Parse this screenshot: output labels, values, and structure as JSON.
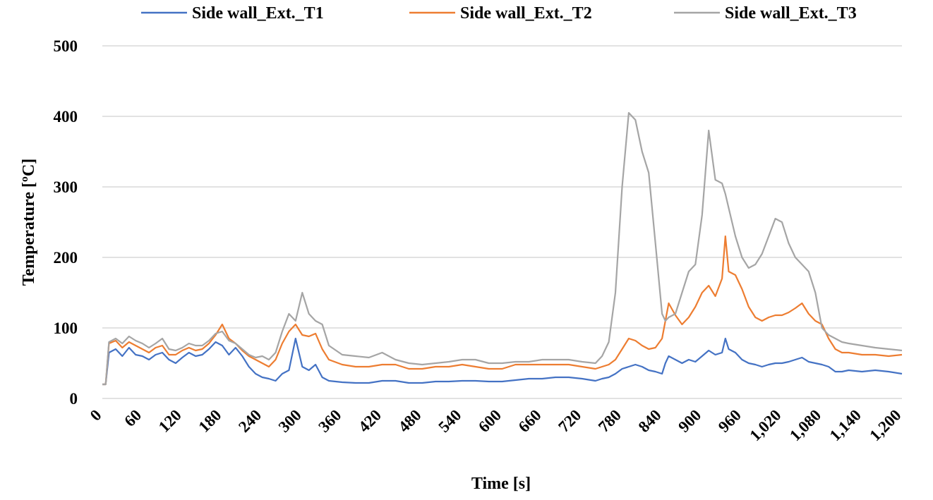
{
  "chart_data": {
    "type": "line",
    "title": "",
    "xlabel": "Time [s]",
    "ylabel": "Temperature [ºC]",
    "xlim": [
      0,
      1200
    ],
    "ylim": [
      0,
      500
    ],
    "grid": true,
    "legend_position": "top",
    "x_ticks": [
      0,
      60,
      120,
      180,
      240,
      300,
      360,
      420,
      480,
      540,
      600,
      660,
      720,
      780,
      840,
      900,
      960,
      1020,
      1080,
      1140,
      1200
    ],
    "x_tick_labels": [
      "0",
      "60",
      "120",
      "180",
      "240",
      "300",
      "360",
      "420",
      "480",
      "540",
      "600",
      "660",
      "720",
      "780",
      "840",
      "900",
      "960",
      "1,020",
      "1,080",
      "1,140",
      "1,200"
    ],
    "y_ticks": [
      0,
      100,
      200,
      300,
      400,
      500
    ],
    "y_tick_labels": [
      "0",
      "100",
      "200",
      "300",
      "400",
      "500"
    ],
    "x": [
      0,
      5,
      10,
      20,
      30,
      40,
      50,
      60,
      70,
      80,
      90,
      100,
      110,
      120,
      130,
      140,
      150,
      160,
      170,
      180,
      190,
      200,
      210,
      220,
      230,
      240,
      250,
      260,
      270,
      280,
      290,
      300,
      310,
      320,
      330,
      340,
      360,
      380,
      400,
      420,
      440,
      460,
      480,
      500,
      520,
      540,
      560,
      580,
      600,
      620,
      640,
      660,
      680,
      700,
      720,
      740,
      750,
      760,
      770,
      780,
      790,
      800,
      810,
      820,
      830,
      840,
      845,
      850,
      860,
      870,
      880,
      890,
      900,
      910,
      920,
      930,
      935,
      940,
      950,
      960,
      970,
      980,
      990,
      1000,
      1010,
      1020,
      1030,
      1040,
      1050,
      1060,
      1070,
      1080,
      1090,
      1100,
      1110,
      1120,
      1140,
      1160,
      1180,
      1200
    ],
    "series": [
      {
        "name": "Side wall_Ext._T1",
        "color": "#4472C4",
        "values": [
          20,
          20,
          65,
          70,
          60,
          72,
          62,
          60,
          55,
          62,
          65,
          55,
          50,
          58,
          65,
          60,
          62,
          70,
          80,
          75,
          62,
          72,
          60,
          45,
          35,
          30,
          28,
          25,
          35,
          40,
          85,
          45,
          40,
          48,
          30,
          25,
          23,
          22,
          22,
          25,
          25,
          22,
          22,
          24,
          24,
          25,
          25,
          24,
          24,
          26,
          28,
          28,
          30,
          30,
          28,
          25,
          28,
          30,
          35,
          42,
          45,
          48,
          45,
          40,
          38,
          35,
          50,
          60,
          55,
          50,
          55,
          52,
          60,
          68,
          62,
          65,
          85,
          70,
          65,
          55,
          50,
          48,
          45,
          48,
          50,
          50,
          52,
          55,
          58,
          52,
          50,
          48,
          45,
          38,
          38,
          40,
          38,
          40,
          38,
          35
        ]
      },
      {
        "name": "Side wall_Ext._T2",
        "color": "#ED7D31",
        "values": [
          20,
          20,
          78,
          82,
          72,
          80,
          75,
          70,
          65,
          72,
          75,
          62,
          62,
          68,
          72,
          68,
          70,
          78,
          90,
          105,
          85,
          78,
          68,
          60,
          55,
          50,
          45,
          55,
          78,
          95,
          105,
          90,
          88,
          92,
          70,
          55,
          48,
          45,
          45,
          48,
          48,
          42,
          42,
          45,
          45,
          48,
          45,
          42,
          42,
          48,
          48,
          48,
          48,
          48,
          45,
          42,
          45,
          48,
          55,
          70,
          85,
          82,
          75,
          70,
          72,
          85,
          110,
          135,
          118,
          105,
          115,
          130,
          150,
          160,
          145,
          170,
          230,
          180,
          175,
          155,
          130,
          115,
          110,
          115,
          118,
          118,
          122,
          128,
          135,
          120,
          110,
          105,
          85,
          70,
          65,
          65,
          62,
          62,
          60,
          62
        ]
      },
      {
        "name": "Side wall_Ext._T3",
        "color": "#A5A5A5",
        "values": [
          20,
          20,
          80,
          85,
          78,
          88,
          82,
          78,
          72,
          78,
          85,
          70,
          68,
          72,
          78,
          75,
          75,
          82,
          92,
          95,
          82,
          78,
          70,
          62,
          58,
          60,
          55,
          65,
          95,
          120,
          110,
          150,
          120,
          110,
          105,
          75,
          62,
          60,
          58,
          65,
          55,
          50,
          48,
          50,
          52,
          55,
          55,
          50,
          50,
          52,
          52,
          55,
          55,
          55,
          52,
          50,
          60,
          80,
          150,
          300,
          405,
          395,
          350,
          320,
          220,
          120,
          110,
          115,
          120,
          150,
          180,
          190,
          260,
          380,
          310,
          305,
          290,
          270,
          230,
          200,
          185,
          190,
          205,
          230,
          255,
          250,
          220,
          200,
          190,
          180,
          150,
          100,
          90,
          85,
          80,
          78,
          75,
          72,
          70,
          68
        ]
      }
    ]
  }
}
